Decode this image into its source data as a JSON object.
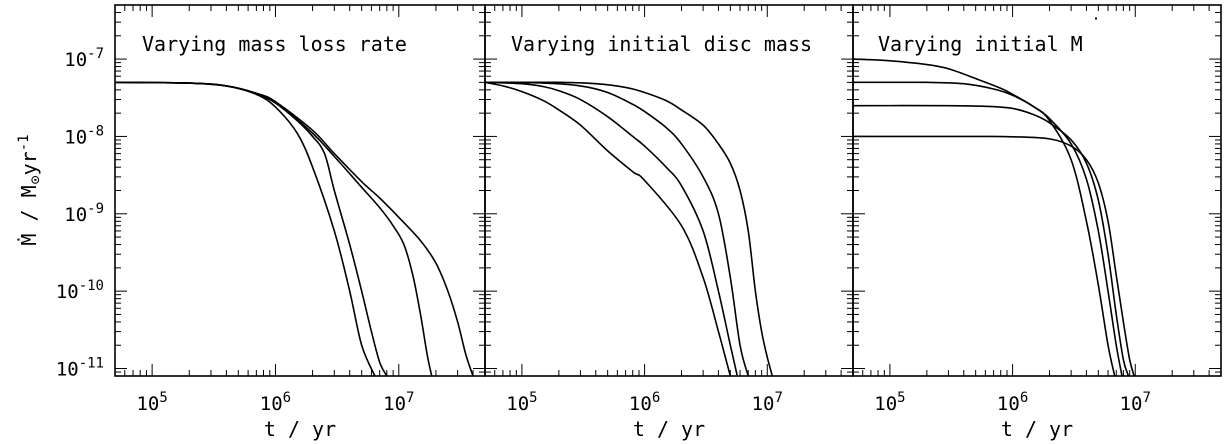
{
  "figure": {
    "ylabel": "Ṁ / M⊙yr⁻¹",
    "ylabel_main": "Ṁ / M",
    "ylabel_unit": "yr",
    "ylabel_exp": "-1"
  },
  "chart_data": [
    {
      "type": "line",
      "title": "Varying mass loss rate",
      "xlabel": "t / yr",
      "xscale": "log",
      "yscale": "log",
      "xlim": [
        50000,
        50000000
      ],
      "ylim": [
        8e-12,
        5e-07
      ],
      "xticks": [
        "10^5",
        "10^6",
        "10^7"
      ],
      "yticks": [
        "10^-7",
        "10^-8",
        "10^-9",
        "10^-10",
        "10^-11"
      ],
      "series": [
        {
          "x": [
            50000,
            200000,
            400000,
            700000,
            1000000,
            1500000,
            2000000,
            3000000,
            4000000,
            5000000,
            6400000
          ],
          "y": [
            5e-08,
            4.9e-08,
            4.5e-08,
            3.5e-08,
            2.4e-08,
            1.1e-08,
            4e-09,
            6e-10,
            1e-10,
            2e-11,
            8e-12
          ]
        },
        {
          "x": [
            50000,
            200000,
            400000,
            700000,
            1000000,
            1500000,
            2000000,
            2500000,
            3000000,
            4000000,
            5000000,
            6000000,
            7000000,
            8000000
          ],
          "y": [
            5e-08,
            4.9e-08,
            4.5e-08,
            3.6e-08,
            2.7e-08,
            1.6e-08,
            1e-08,
            6e-09,
            2e-09,
            4e-10,
            1e-10,
            3e-11,
            1.2e-11,
            8e-12
          ]
        },
        {
          "x": [
            50000,
            200000,
            400000,
            700000,
            1000000,
            2000000,
            3000000,
            4000000,
            5000000,
            7000000,
            9000000,
            11000000,
            13000000,
            15000000,
            17000000,
            18500000
          ],
          "y": [
            5e-08,
            4.9e-08,
            4.5e-08,
            3.6e-08,
            2.8e-08,
            1.1e-08,
            5.5e-09,
            3.3e-09,
            2.2e-09,
            1.2e-09,
            7e-10,
            4e-10,
            1.6e-10,
            5e-11,
            1.5e-11,
            8e-12
          ]
        },
        {
          "x": [
            50000,
            200000,
            400000,
            700000,
            1000000,
            2000000,
            3000000,
            5000000,
            7000000,
            10000000,
            15000000,
            20000000,
            25000000,
            30000000,
            35000000,
            40000000
          ],
          "y": [
            5e-08,
            4.9e-08,
            4.5e-08,
            3.6e-08,
            2.8e-08,
            1.2e-08,
            6e-09,
            2.6e-09,
            1.6e-09,
            9e-10,
            4.5e-10,
            2.3e-10,
            1e-10,
            4e-11,
            1.5e-11,
            8e-12
          ]
        }
      ]
    },
    {
      "type": "line",
      "title": "Varying initial disc mass",
      "xlabel": "t / yr",
      "xscale": "log",
      "yscale": "log",
      "xlim": [
        50000,
        50000000
      ],
      "ylim": [
        8e-12,
        5e-07
      ],
      "xticks": [
        "10^5",
        "10^6",
        "10^7"
      ],
      "yticks": [
        "10^-7",
        "10^-8",
        "10^-9",
        "10^-10",
        "10^-11"
      ],
      "series": [
        {
          "x": [
            50000,
            70000,
            100000,
            150000,
            200000,
            300000,
            500000,
            800000,
            1000000,
            2000000,
            3000000,
            4000000,
            4500000,
            5000000
          ],
          "y": [
            5e-08,
            4.5e-08,
            3.8e-08,
            2.9e-08,
            2.2e-08,
            1.4e-08,
            6.5e-09,
            3.5e-09,
            2.7e-09,
            7e-10,
            1.5e-10,
            3e-11,
            1.5e-11,
            8e-12
          ]
        },
        {
          "x": [
            50000,
            100000,
            150000,
            200000,
            300000,
            500000,
            800000,
            1000000,
            1500000,
            2000000,
            3000000,
            4000000,
            5000000,
            5700000
          ],
          "y": [
            5e-08,
            4.8e-08,
            4.4e-08,
            3.9e-08,
            3e-08,
            1.8e-08,
            1e-08,
            7.5e-09,
            4e-09,
            2.3e-09,
            6e-10,
            1e-10,
            2e-11,
            8e-12
          ]
        },
        {
          "x": [
            50000,
            150000,
            300000,
            500000,
            800000,
            1000000,
            1500000,
            2000000,
            3000000,
            4000000,
            5000000,
            6000000,
            7000000
          ],
          "y": [
            5e-08,
            4.9e-08,
            4.5e-08,
            3.7e-08,
            2.6e-08,
            2.1e-08,
            1.3e-08,
            8e-09,
            3e-09,
            1e-09,
            1.5e-10,
            2e-11,
            8e-12
          ]
        },
        {
          "x": [
            50000,
            200000,
            400000,
            700000,
            1000000,
            1500000,
            2000000,
            3000000,
            4000000,
            5000000,
            6000000,
            7000000,
            8000000,
            9000000,
            10000000,
            11000000
          ],
          "y": [
            5e-08,
            5e-08,
            4.8e-08,
            4.3e-08,
            3.7e-08,
            2.9e-08,
            2.2e-08,
            1.4e-08,
            8e-09,
            4.5e-09,
            2e-09,
            6e-10,
            1e-10,
            3e-11,
            1.4e-11,
            8e-12
          ]
        }
      ]
    },
    {
      "type": "line",
      "title": "Varying initial Ṁ",
      "title_main": "Varying initial M",
      "xlabel": "t / yr",
      "xscale": "log",
      "yscale": "log",
      "xlim": [
        50000,
        50000000
      ],
      "ylim": [
        8e-12,
        5e-07
      ],
      "xticks": [
        "10^5",
        "10^6",
        "10^7"
      ],
      "yticks": [
        "10^-7",
        "10^-8",
        "10^-9",
        "10^-10",
        "10^-11"
      ],
      "series": [
        {
          "x": [
            50000,
            100000,
            200000,
            300000,
            500000,
            800000,
            1000000,
            1500000,
            2000000,
            3000000,
            4000000,
            5000000,
            6000000,
            6800000
          ],
          "y": [
            1e-07,
            9.5e-08,
            8.5e-08,
            7.5e-08,
            5.6e-08,
            4.2e-08,
            3.5e-08,
            2.4e-08,
            1.6e-08,
            5e-09,
            8e-10,
            1.2e-10,
            2e-11,
            8e-12
          ]
        },
        {
          "x": [
            50000,
            200000,
            400000,
            700000,
            1000000,
            1500000,
            2000000,
            3000000,
            4000000,
            5000000,
            6000000,
            7000000,
            7800000
          ],
          "y": [
            5e-08,
            5e-08,
            4.8e-08,
            4.1e-08,
            3.4e-08,
            2.4e-08,
            1.7e-08,
            8e-09,
            2.8e-09,
            6e-10,
            1e-10,
            2e-11,
            8e-12
          ]
        },
        {
          "x": [
            50000,
            300000,
            600000,
            1000000,
            1500000,
            2000000,
            3000000,
            4000000,
            5000000,
            6000000,
            7000000,
            8000000,
            8800000
          ],
          "y": [
            2.5e-08,
            2.5e-08,
            2.45e-08,
            2.3e-08,
            1.9e-08,
            1.5e-08,
            9e-09,
            4.5e-09,
            1.5e-09,
            3e-10,
            5e-11,
            1.3e-11,
            8e-12
          ]
        },
        {
          "x": [
            50000,
            500000,
            1000000,
            2000000,
            3000000,
            4000000,
            5000000,
            6000000,
            7000000,
            8000000,
            9000000,
            9800000
          ],
          "y": [
            1e-08,
            1e-08,
            9.9e-09,
            9.3e-09,
            7.5e-09,
            5e-09,
            2.5e-09,
            8e-10,
            1.6e-10,
            4e-11,
            1.3e-11,
            8e-12
          ]
        }
      ]
    }
  ]
}
